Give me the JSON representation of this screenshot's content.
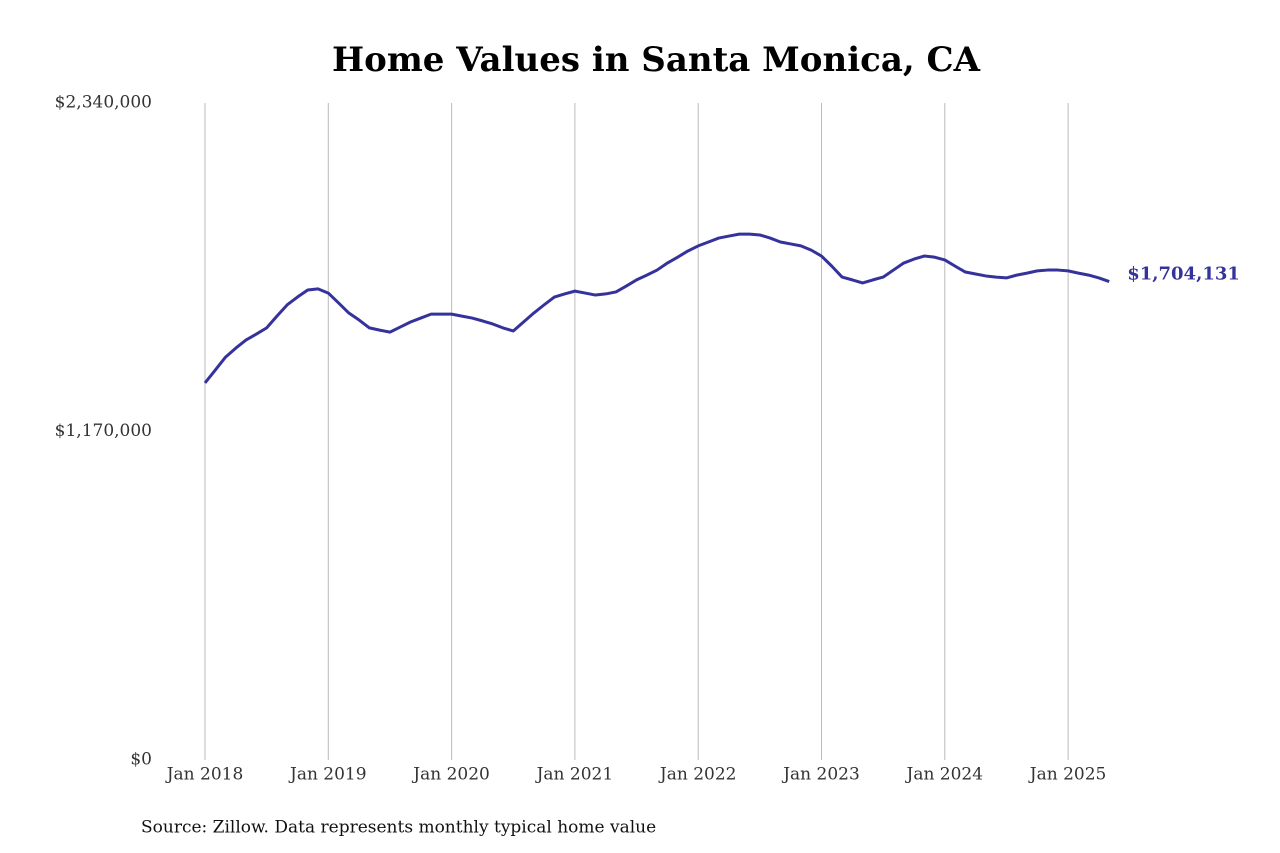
{
  "chart_data": {
    "type": "line",
    "title": "Home Values in Santa Monica, CA",
    "source": "Source: Zillow. Data represents monthly typical home value",
    "color": "#35329b",
    "x": [
      "2018-01",
      "2018-02",
      "2018-03",
      "2018-04",
      "2018-05",
      "2018-06",
      "2018-07",
      "2018-08",
      "2018-09",
      "2018-10",
      "2018-11",
      "2018-12",
      "2019-01",
      "2019-02",
      "2019-03",
      "2019-04",
      "2019-05",
      "2019-06",
      "2019-07",
      "2019-08",
      "2019-09",
      "2019-10",
      "2019-11",
      "2019-12",
      "2020-01",
      "2020-02",
      "2020-03",
      "2020-04",
      "2020-05",
      "2020-06",
      "2020-07",
      "2020-08",
      "2020-09",
      "2020-10",
      "2020-11",
      "2020-12",
      "2021-01",
      "2021-02",
      "2021-03",
      "2021-04",
      "2021-05",
      "2021-06",
      "2021-07",
      "2021-08",
      "2021-09",
      "2021-10",
      "2021-11",
      "2021-12",
      "2022-01",
      "2022-02",
      "2022-03",
      "2022-04",
      "2022-05",
      "2022-06",
      "2022-07",
      "2022-08",
      "2022-09",
      "2022-10",
      "2022-11",
      "2022-12",
      "2023-01",
      "2023-02",
      "2023-03",
      "2023-04",
      "2023-05",
      "2023-06",
      "2023-07",
      "2023-08",
      "2023-09",
      "2023-10",
      "2023-11",
      "2023-12",
      "2024-01",
      "2024-02",
      "2024-03",
      "2024-04",
      "2024-05",
      "2024-06",
      "2024-07",
      "2024-08",
      "2024-09",
      "2024-10",
      "2024-11",
      "2024-12",
      "2025-01",
      "2025-02",
      "2025-03",
      "2025-04",
      "2025-05"
    ],
    "values": [
      1343000,
      1389000,
      1435000,
      1467000,
      1496000,
      1517000,
      1539000,
      1581000,
      1621000,
      1649000,
      1674000,
      1678000,
      1663000,
      1628000,
      1592000,
      1567000,
      1539000,
      1531000,
      1524000,
      1542000,
      1560000,
      1574000,
      1588000,
      1588000,
      1588000,
      1581000,
      1574000,
      1564000,
      1553000,
      1539000,
      1528000,
      1560000,
      1592000,
      1621000,
      1649000,
      1660000,
      1670000,
      1663000,
      1656000,
      1660000,
      1667000,
      1688000,
      1710000,
      1727000,
      1745000,
      1770000,
      1791000,
      1813000,
      1831000,
      1845000,
      1859000,
      1866000,
      1873000,
      1873000,
      1870000,
      1859000,
      1845000,
      1838000,
      1831000,
      1816000,
      1795000,
      1759000,
      1720000,
      1710000,
      1699000,
      1710000,
      1720000,
      1745000,
      1770000,
      1784000,
      1795000,
      1791000,
      1781000,
      1759000,
      1738000,
      1731000,
      1724000,
      1720000,
      1717000,
      1727000,
      1734000,
      1742000,
      1745000,
      1745000,
      1742000,
      1734000,
      1727000,
      1717000,
      1704131
    ],
    "value_labels": [
      null,
      null,
      null,
      null,
      null,
      null,
      null,
      null,
      null,
      null,
      null,
      null,
      null,
      null,
      null,
      null,
      null,
      null,
      null,
      null,
      null,
      null,
      null,
      null,
      null,
      null,
      null,
      null,
      null,
      null,
      null,
      null,
      null,
      null,
      null,
      null,
      null,
      null,
      null,
      null,
      null,
      null,
      null,
      null,
      null,
      null,
      null,
      null,
      null,
      null,
      null,
      null,
      null,
      null,
      null,
      null,
      null,
      null,
      null,
      null,
      null,
      null,
      null,
      null,
      null,
      null,
      null,
      null,
      null,
      null,
      null,
      null,
      null,
      null,
      null,
      null,
      null,
      null,
      null,
      null,
      null,
      null,
      null,
      null,
      null,
      null,
      null,
      null,
      "$1,704,131"
    ],
    "xticks": [
      {
        "value": "2018-01",
        "label": "Jan 2018"
      },
      {
        "value": "2019-01",
        "label": "Jan 2019"
      },
      {
        "value": "2020-01",
        "label": "Jan 2020"
      },
      {
        "value": "2021-01",
        "label": "Jan 2021"
      },
      {
        "value": "2022-01",
        "label": "Jan 2022"
      },
      {
        "value": "2023-01",
        "label": "Jan 2023"
      },
      {
        "value": "2024-01",
        "label": "Jan 2024"
      },
      {
        "value": "2025-01",
        "label": "Jan 2025"
      }
    ],
    "ylim": [
      0,
      2340000
    ],
    "yticks": [
      {
        "value": 0,
        "label": "$0"
      },
      {
        "value": 1170000,
        "label": "$1,170,000"
      },
      {
        "value": 2340000,
        "label": "$2,340,000"
      }
    ],
    "grid": "x"
  }
}
